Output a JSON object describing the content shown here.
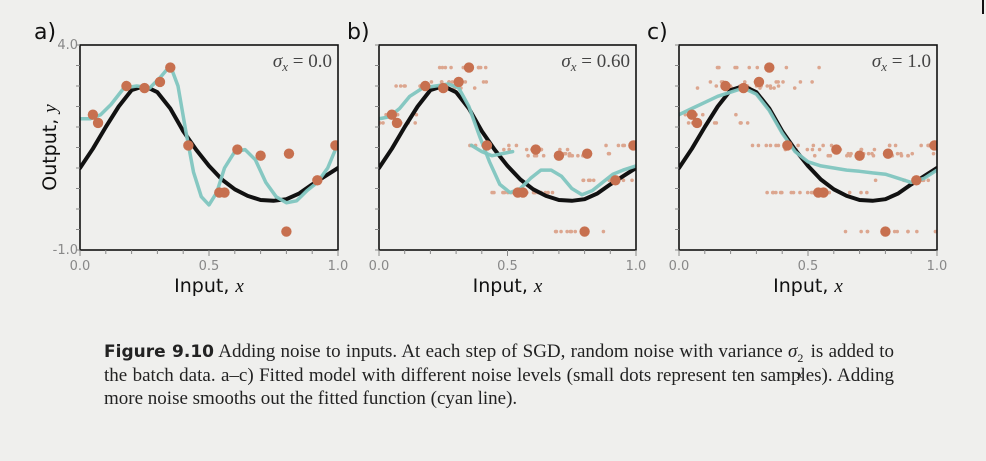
{
  "chart_data": [
    {
      "type": "line",
      "panel_label": "a)",
      "annotation": "σx = 0.0",
      "annotation_sigma": "σ",
      "annotation_sub": "x",
      "annotation_value": " = 0.0",
      "xlabel": "Input, ",
      "xlabel_var": "x",
      "ylabel": "Output, ",
      "ylabel_var": "y",
      "xlim": [
        0.0,
        1.0
      ],
      "ylim": [
        -1.0,
        4.0
      ],
      "x_tick_labels": [
        "0.0",
        "0.5",
        "1.0"
      ],
      "y_tick_labels": [
        "4.0",
        "-1.0"
      ],
      "series": [
        {
          "color": "#111111",
          "x": [
            0.0,
            0.05,
            0.1,
            0.15,
            0.2,
            0.25,
            0.3,
            0.35,
            0.4,
            0.45,
            0.5,
            0.55,
            0.6,
            0.65,
            0.7,
            0.75,
            0.8,
            0.85,
            0.9,
            0.95,
            1.0
          ],
          "y": [
            1.0,
            1.47,
            2.0,
            2.5,
            2.9,
            3.0,
            2.85,
            2.45,
            1.9,
            1.45,
            1.05,
            0.72,
            0.48,
            0.32,
            0.22,
            0.2,
            0.24,
            0.38,
            0.6,
            0.8,
            1.0
          ]
        },
        {
          "color": "#7fc5c0",
          "x": [
            0.0,
            0.04,
            0.08,
            0.12,
            0.17,
            0.22,
            0.27,
            0.31,
            0.35,
            0.38,
            0.41,
            0.44,
            0.47,
            0.5,
            0.53,
            0.56,
            0.6,
            0.64,
            0.68,
            0.72,
            0.76,
            0.8,
            0.84,
            0.88,
            0.92,
            0.96,
            1.0
          ],
          "y": [
            2.2,
            2.2,
            2.3,
            2.55,
            2.95,
            3.0,
            2.95,
            3.2,
            3.5,
            3.0,
            1.9,
            0.9,
            0.3,
            0.1,
            0.4,
            1.0,
            1.4,
            1.45,
            1.2,
            0.65,
            0.3,
            0.15,
            0.2,
            0.45,
            0.65,
            1.0,
            1.6
          ]
        }
      ],
      "points": {
        "x": [
          0.05,
          0.07,
          0.18,
          0.25,
          0.31,
          0.35,
          0.42,
          0.54,
          0.56,
          0.61,
          0.7,
          0.81,
          0.8,
          0.92,
          0.99
        ],
        "y": [
          2.3,
          2.1,
          3.0,
          2.95,
          3.1,
          3.45,
          1.55,
          0.4,
          0.4,
          1.45,
          1.3,
          1.35,
          -0.55,
          0.7,
          1.55
        ]
      }
    },
    {
      "type": "line",
      "panel_label": "b)",
      "annotation": "σx = 0.60",
      "annotation_sigma": "σ",
      "annotation_sub": "x",
      "annotation_value": " = 0.60",
      "xlabel": "Input, ",
      "xlabel_var": "x",
      "xlim": [
        0.0,
        1.0
      ],
      "ylim": [
        -1.0,
        4.0
      ],
      "x_tick_labels": [
        "0.0",
        "0.5",
        "1.0"
      ],
      "series": [
        {
          "color": "#111111",
          "x": [
            0.0,
            0.05,
            0.1,
            0.15,
            0.2,
            0.25,
            0.3,
            0.35,
            0.4,
            0.45,
            0.5,
            0.55,
            0.6,
            0.65,
            0.7,
            0.75,
            0.8,
            0.85,
            0.9,
            0.95,
            1.0
          ],
          "y": [
            1.0,
            1.47,
            2.0,
            2.5,
            2.9,
            3.0,
            2.85,
            2.45,
            1.9,
            1.45,
            1.05,
            0.72,
            0.48,
            0.32,
            0.22,
            0.2,
            0.24,
            0.38,
            0.6,
            0.8,
            1.0
          ]
        },
        {
          "color": "#7fc5c0",
          "x": [
            0.0,
            0.04,
            0.08,
            0.12,
            0.17,
            0.22,
            0.27,
            0.31,
            0.35,
            0.39,
            0.43,
            0.47,
            0.51,
            0.55,
            0.59,
            0.63,
            0.67,
            0.71,
            0.75,
            0.79,
            0.83,
            0.87,
            0.91,
            0.95,
            1.0
          ],
          "y": [
            2.2,
            2.25,
            2.45,
            2.75,
            2.95,
            3.0,
            3.05,
            2.95,
            2.5,
            1.8,
            1.15,
            0.6,
            0.4,
            0.5,
            0.75,
            0.95,
            0.95,
            0.8,
            0.5,
            0.35,
            0.45,
            0.65,
            0.85,
            0.95,
            1.05
          ]
        },
        {
          "color": "#7fc5c0",
          "x": [
            0.36,
            0.4,
            0.44,
            0.48,
            0.52
          ],
          "y": [
            1.55,
            1.4,
            1.3,
            1.35,
            1.4
          ],
          "dashed": false
        }
      ],
      "points": {
        "x": [
          0.05,
          0.07,
          0.18,
          0.25,
          0.31,
          0.35,
          0.42,
          0.54,
          0.56,
          0.61,
          0.7,
          0.81,
          0.8,
          0.92,
          0.99
        ],
        "y": [
          2.3,
          2.1,
          3.0,
          2.95,
          3.1,
          3.45,
          1.55,
          0.4,
          0.4,
          1.45,
          1.3,
          1.35,
          -0.55,
          0.7,
          1.55
        ]
      }
    },
    {
      "type": "line",
      "panel_label": "c)",
      "annotation": "σx = 1.0",
      "annotation_sigma": "σ",
      "annotation_sub": "x",
      "annotation_value": " = 1.0",
      "xlabel": "Input, ",
      "xlabel_var": "x",
      "xlim": [
        0.0,
        1.0
      ],
      "ylim": [
        -1.0,
        4.0
      ],
      "x_tick_labels": [
        "0.0",
        "0.5",
        "1.0"
      ],
      "series": [
        {
          "color": "#111111",
          "x": [
            0.0,
            0.05,
            0.1,
            0.15,
            0.2,
            0.25,
            0.3,
            0.35,
            0.4,
            0.45,
            0.5,
            0.55,
            0.6,
            0.65,
            0.7,
            0.75,
            0.8,
            0.85,
            0.9,
            0.95,
            1.0
          ],
          "y": [
            1.0,
            1.47,
            2.0,
            2.5,
            2.9,
            3.0,
            2.85,
            2.45,
            1.9,
            1.45,
            1.05,
            0.72,
            0.48,
            0.32,
            0.22,
            0.2,
            0.24,
            0.38,
            0.6,
            0.8,
            1.0
          ]
        },
        {
          "color": "#7fc5c0",
          "x": [
            0.0,
            0.05,
            0.1,
            0.15,
            0.2,
            0.25,
            0.3,
            0.35,
            0.4,
            0.45,
            0.5,
            0.55,
            0.6,
            0.65,
            0.7,
            0.75,
            0.8,
            0.85,
            0.9,
            0.95,
            1.0
          ],
          "y": [
            2.3,
            2.45,
            2.6,
            2.75,
            2.85,
            2.95,
            2.8,
            2.4,
            1.85,
            1.4,
            1.15,
            1.05,
            1.0,
            0.95,
            0.92,
            0.88,
            0.85,
            0.75,
            0.65,
            0.75,
            0.95
          ]
        }
      ],
      "points": {
        "x": [
          0.05,
          0.07,
          0.18,
          0.25,
          0.31,
          0.35,
          0.42,
          0.54,
          0.56,
          0.61,
          0.7,
          0.81,
          0.8,
          0.92,
          0.99
        ],
        "y": [
          2.3,
          2.1,
          3.0,
          2.95,
          3.1,
          3.45,
          1.55,
          0.4,
          0.4,
          1.45,
          1.3,
          1.35,
          -0.55,
          0.7,
          1.55
        ]
      }
    }
  ],
  "caption": {
    "label": "Figure 9.10",
    "text_1": " Adding noise to inputs.  At each step of SGD, random noise with variance ",
    "math": "σ",
    "math_sub": "x",
    "math_sup": "2",
    "text_2": " is added to the batch data.  a–c) Fitted model with different noise levels (small dots represent ten samples).  Adding more noise smooths out the fitted function (cyan line)."
  },
  "colors": {
    "true_function": "#111111",
    "fitted_model": "#7fc5c0",
    "data_points": "#c7704f",
    "noisy_samples": "#dca68f",
    "axis_ticks": "#888888"
  }
}
